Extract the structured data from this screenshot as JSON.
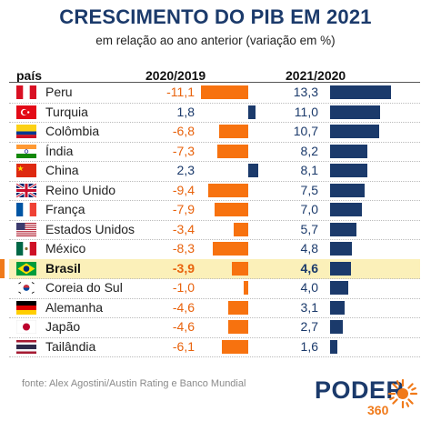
{
  "title": "CRESCIMENTO DO PIB EM 2021",
  "subtitle": "em relação ao ano anterior (variação em %)",
  "source": "fonte: Alex Agostini/Austin Rating e Banco Mundial",
  "logo": {
    "text": "PODER",
    "number": "360"
  },
  "colors": {
    "negative": "#e8620c",
    "bar_negative": "#f7720f",
    "positive": "#1b3a6b",
    "highlight": "#fbf0b9"
  },
  "chart_data": {
    "type": "bar",
    "column_headers": {
      "country": "país",
      "series1": "2020/2019",
      "series2": "2021/2020"
    },
    "categories": [
      "Peru",
      "Turquia",
      "Colômbia",
      "Índia",
      "China",
      "Reino Unido",
      "França",
      "Estados Unidos",
      "México",
      "Brasil",
      "Coreia do Sul",
      "Alemanha",
      "Japão",
      "Tailândia"
    ],
    "flags": [
      "peru-flag",
      "turkey-flag",
      "colombia-flag",
      "india-flag",
      "china-flag",
      "uk-flag",
      "france-flag",
      "usa-flag",
      "mexico-flag",
      "brazil-flag",
      "south-korea-flag",
      "germany-flag",
      "japan-flag",
      "thailand-flag"
    ],
    "highlight": "Brasil",
    "series": [
      {
        "name": "2020/2019",
        "values": [
          -11.1,
          1.8,
          -6.8,
          -7.3,
          2.3,
          -9.4,
          -7.9,
          -3.4,
          -8.3,
          -3.9,
          -1.0,
          -4.6,
          -4.6,
          -6.1
        ],
        "labels": [
          "-11,1",
          "1,8",
          "-6,8",
          "-7,3",
          "2,3",
          "-9,4",
          "-7,9",
          "-3,4",
          "-8,3",
          "-3,9",
          "-1,0",
          "-4,6",
          "-4,6",
          "-6,1"
        ]
      },
      {
        "name": "2021/2020",
        "values": [
          13.3,
          11.0,
          10.7,
          8.2,
          8.1,
          7.5,
          7.0,
          5.7,
          4.8,
          4.6,
          4.0,
          3.1,
          2.7,
          1.6
        ],
        "labels": [
          "13,3",
          "11,0",
          "10,7",
          "8,2",
          "8,1",
          "7,5",
          "7,0",
          "5,7",
          "4,8",
          "4,6",
          "4,0",
          "3,1",
          "2,7",
          "1,6"
        ]
      }
    ]
  }
}
